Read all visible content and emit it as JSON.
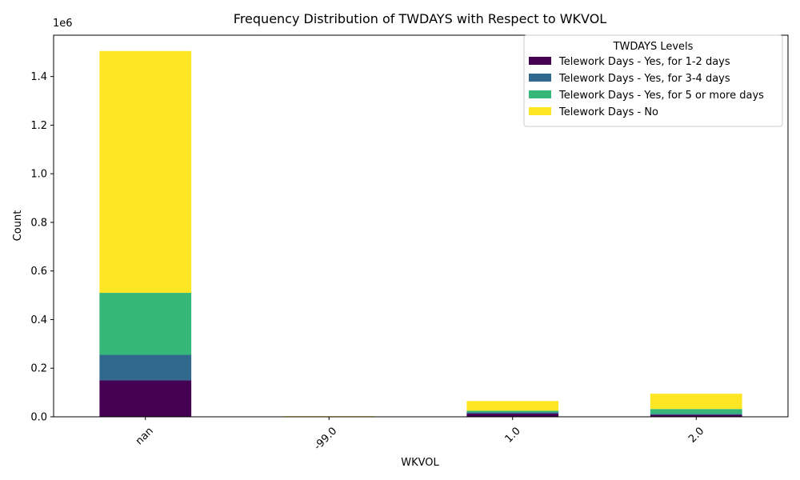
{
  "chart_data": {
    "type": "bar",
    "stacked": true,
    "title": "Frequency Distribution of TWDAYS with Respect to WKVOL",
    "xlabel": "WKVOL",
    "ylabel": "Count",
    "y_offset_text": "1e6",
    "categories": [
      "nan",
      "-99.0",
      "1.0",
      "2.0"
    ],
    "ylim": [
      0,
      1.57
    ],
    "yticks": [
      0,
      0.2,
      0.4,
      0.6,
      0.8,
      1.0,
      1.2,
      1.4
    ],
    "ytick_labels": [
      "0.0",
      "0.2",
      "0.4",
      "0.6",
      "0.8",
      "1.0",
      "1.2",
      "1.4"
    ],
    "legend_title": "TWDAYS Levels",
    "legend_position": "top-right",
    "grid": false,
    "series": [
      {
        "name": "Telework Days - Yes, for 1-2 days",
        "color": "#440154",
        "values": [
          0.15,
          0.0005,
          0.013,
          0.008
        ]
      },
      {
        "name": "Telework Days - Yes, for 3-4 days",
        "color": "#31688e",
        "values": [
          0.105,
          0.0003,
          0.006,
          0.004
        ]
      },
      {
        "name": "Telework Days - Yes, for 5 or more days",
        "color": "#35b779",
        "values": [
          0.255,
          0.0005,
          0.006,
          0.02
        ]
      },
      {
        "name": "Telework Days - No",
        "color": "#fde725",
        "values": [
          0.995,
          0.0012,
          0.04,
          0.063
        ]
      }
    ]
  }
}
